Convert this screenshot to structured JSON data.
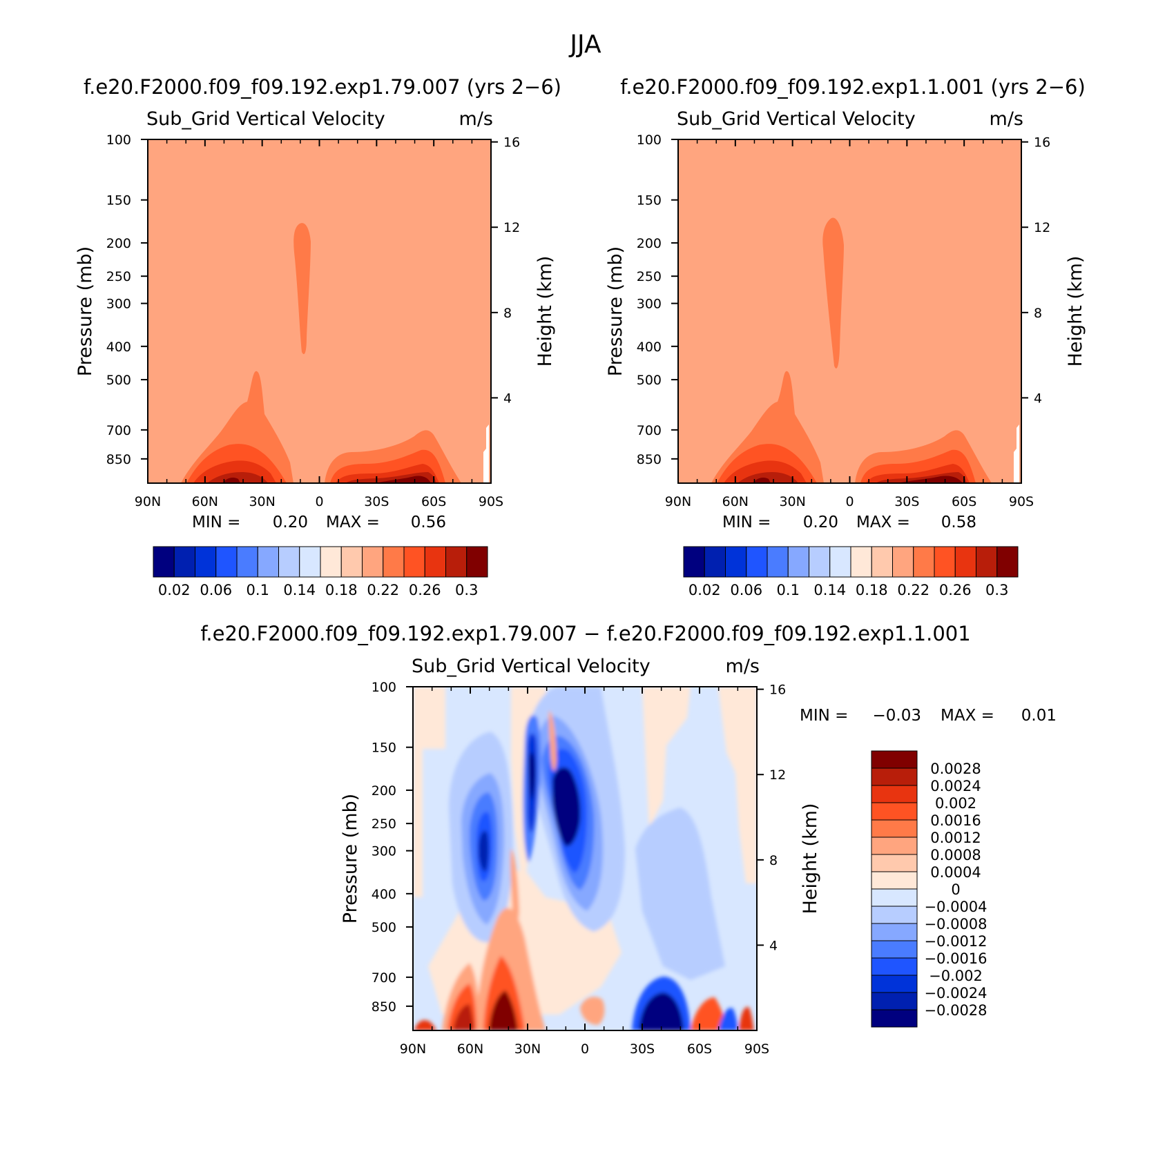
{
  "figure": {
    "title": "JJA"
  },
  "chart_data": [
    {
      "type": "heatmap",
      "caption": "f.e20.F2000.f09_f09.192.exp1.79.007 (yrs 2−6)",
      "title": "Sub_Grid Vertical Velocity",
      "units": "m/s",
      "xlabel": "",
      "ylabel": "Pressure (mb)",
      "ylabel_right": "Height (km)",
      "x_ticks": [
        "90N",
        "60N",
        "30N",
        "0",
        "30S",
        "60S",
        "90S"
      ],
      "y_ticks": [
        "100",
        "150",
        "200",
        "250",
        "300",
        "400",
        "500",
        "700",
        "850"
      ],
      "y_ticks_right": [
        "16",
        "12",
        "8",
        "4"
      ],
      "min_label": "MIN =",
      "min_value": "0.20",
      "max_label": "MAX =",
      "max_value": "0.56",
      "colorbar_labels": [
        "0.02",
        "0.06",
        "0.1",
        "0.14",
        "0.18",
        "0.22",
        "0.26",
        "0.3"
      ],
      "colorbar_colors": [
        "#00007f",
        "#0020b0",
        "#0033d9",
        "#1f55ff",
        "#4a7cff",
        "#86a8ff",
        "#b7cdff",
        "#d8e7ff",
        "#ffe8d8",
        "#ffc9ad",
        "#ffa57f",
        "#ff7a48",
        "#ff5323",
        "#e83410",
        "#b81e0a",
        "#800000"
      ]
    },
    {
      "type": "heatmap",
      "caption": "f.e20.F2000.f09_f09.192.exp1.1.001 (yrs 2−6)",
      "title": "Sub_Grid Vertical Velocity",
      "units": "m/s",
      "xlabel": "",
      "ylabel": "Pressure (mb)",
      "ylabel_right": "Height (km)",
      "x_ticks": [
        "90N",
        "60N",
        "30N",
        "0",
        "30S",
        "60S",
        "90S"
      ],
      "y_ticks": [
        "100",
        "150",
        "200",
        "250",
        "300",
        "400",
        "500",
        "700",
        "850"
      ],
      "y_ticks_right": [
        "16",
        "12",
        "8",
        "4"
      ],
      "min_label": "MIN =",
      "min_value": "0.20",
      "max_label": "MAX =",
      "max_value": "0.58",
      "colorbar_labels": [
        "0.02",
        "0.06",
        "0.1",
        "0.14",
        "0.18",
        "0.22",
        "0.26",
        "0.3"
      ],
      "colorbar_colors": [
        "#00007f",
        "#0020b0",
        "#0033d9",
        "#1f55ff",
        "#4a7cff",
        "#86a8ff",
        "#b7cdff",
        "#d8e7ff",
        "#ffe8d8",
        "#ffc9ad",
        "#ffa57f",
        "#ff7a48",
        "#ff5323",
        "#e83410",
        "#b81e0a",
        "#800000"
      ]
    },
    {
      "type": "heatmap",
      "caption": "f.e20.F2000.f09_f09.192.exp1.79.007 − f.e20.F2000.f09_f09.192.exp1.1.001",
      "title": "Sub_Grid Vertical Velocity",
      "units": "m/s",
      "xlabel": "",
      "ylabel": "Pressure (mb)",
      "ylabel_right": "Height (km)",
      "x_ticks": [
        "90N",
        "60N",
        "30N",
        "0",
        "30S",
        "60S",
        "90S"
      ],
      "y_ticks": [
        "100",
        "150",
        "200",
        "250",
        "300",
        "400",
        "500",
        "700",
        "850"
      ],
      "y_ticks_right": [
        "16",
        "12",
        "8",
        "4"
      ],
      "min_label": "MIN =",
      "min_value": "−0.03",
      "max_label": "MAX =",
      "max_value": "0.01",
      "colorbar_labels": [
        "0.0028",
        "0.0024",
        "0.002",
        "0.0016",
        "0.0012",
        "0.0008",
        "0.0004",
        "0",
        "−0.0004",
        "−0.0008",
        "−0.0012",
        "−0.0016",
        "−0.002",
        "−0.0024",
        "−0.0028"
      ],
      "colorbar_colors": [
        "#800000",
        "#b81e0a",
        "#e83410",
        "#ff5323",
        "#ff7a48",
        "#ffa57f",
        "#ffc9ad",
        "#ffe8d8",
        "#d8e7ff",
        "#b7cdff",
        "#86a8ff",
        "#4a7cff",
        "#1f55ff",
        "#0033d9",
        "#0020b0",
        "#00007f"
      ]
    }
  ]
}
